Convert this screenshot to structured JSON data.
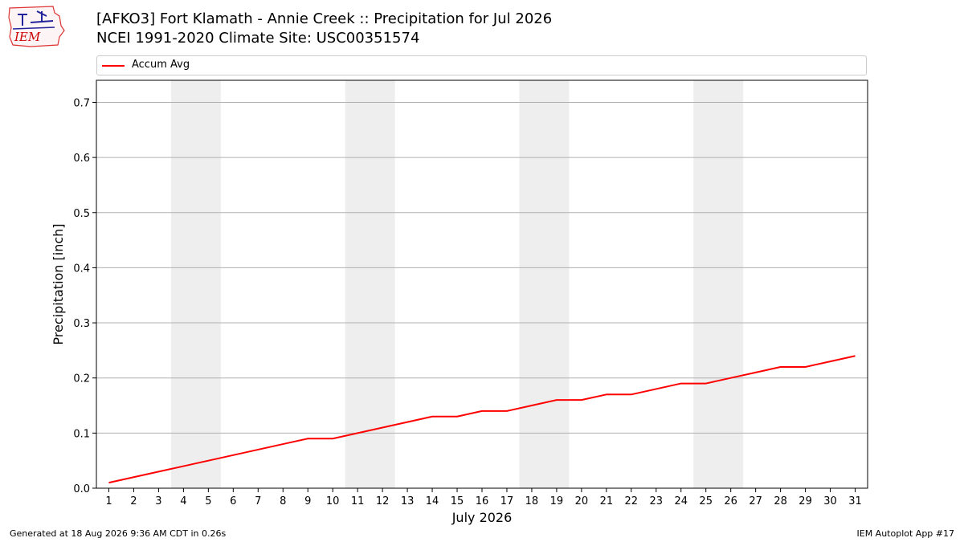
{
  "header": {
    "logo_icon": "iem-logo-icon",
    "logo_text": "IEM",
    "title_line1": "[AFKO3] Fort Klamath - Annie Creek :: Precipitation for Jul 2026",
    "title_line2": "NCEI 1991-2020 Climate Site: USC00351574"
  },
  "footer": {
    "generated": "Generated at 18 Aug 2026 9:36 AM CDT in 0.26s",
    "app": "IEM Autoplot App #17"
  },
  "chart_data": {
    "type": "line",
    "xlabel": "July 2026",
    "ylabel": "Precipitation [inch]",
    "x": [
      1,
      2,
      3,
      4,
      5,
      6,
      7,
      8,
      9,
      10,
      11,
      12,
      13,
      14,
      15,
      16,
      17,
      18,
      19,
      20,
      21,
      22,
      23,
      24,
      25,
      26,
      27,
      28,
      29,
      30,
      31
    ],
    "xlim": [
      0.5,
      31.5
    ],
    "ylim": [
      0,
      0.74
    ],
    "yticks": [
      0.0,
      0.1,
      0.2,
      0.3,
      0.4,
      0.5,
      0.6,
      0.7
    ],
    "grid": "horizontal",
    "legend_placement": "top",
    "weekend_shading": [
      [
        3.5,
        5.5
      ],
      [
        10.5,
        12.5
      ],
      [
        17.5,
        19.5
      ],
      [
        24.5,
        26.5
      ]
    ],
    "shade_color": "#eeeeee",
    "series": [
      {
        "name": "Accum Avg",
        "color": "#ff0000",
        "values": [
          0.01,
          0.02,
          0.03,
          0.04,
          0.05,
          0.06,
          0.07,
          0.08,
          0.09,
          0.09,
          0.1,
          0.11,
          0.12,
          0.13,
          0.13,
          0.14,
          0.14,
          0.15,
          0.16,
          0.16,
          0.17,
          0.17,
          0.18,
          0.19,
          0.19,
          0.2,
          0.21,
          0.22,
          0.22,
          0.23,
          0.24
        ]
      }
    ]
  }
}
